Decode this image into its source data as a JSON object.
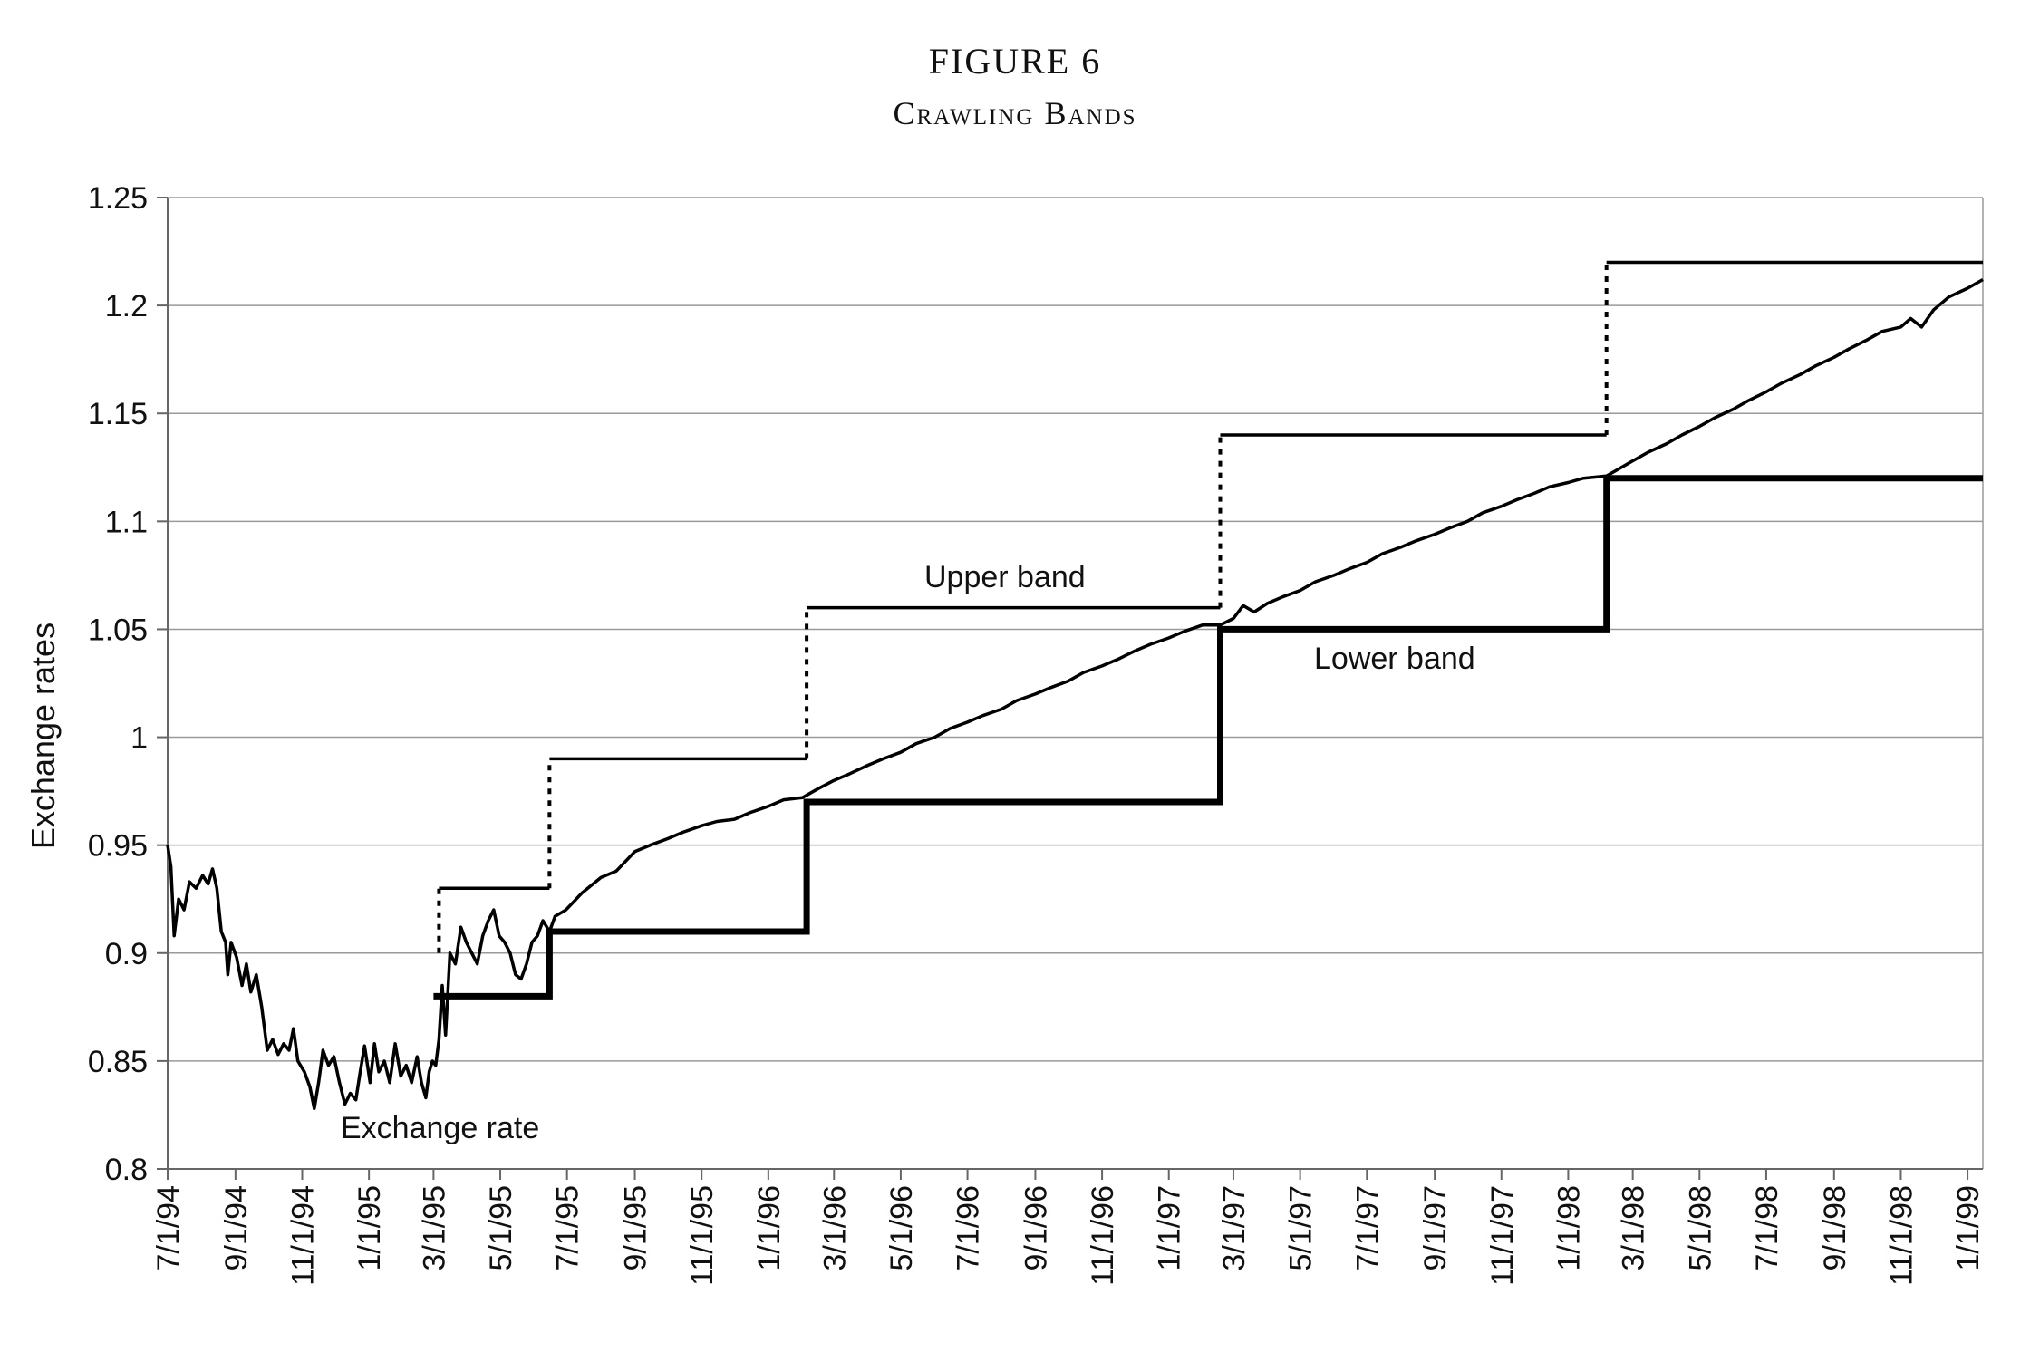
{
  "figure": {
    "number": "FIGURE 6",
    "title": "Crawling Bands"
  },
  "chart_data": {
    "type": "line",
    "title": "Crawling Bands",
    "xlabel": "",
    "ylabel": "Exchange rates",
    "ylim": [
      0.8,
      1.25
    ],
    "yticks": [
      "1.25",
      "1.2",
      "1.15",
      "1.1",
      "1.05",
      "1",
      "0.95",
      "0.9",
      "0.85",
      "0.8"
    ],
    "xticks": [
      "7/1/94",
      "9/1/94",
      "11/1/94",
      "1/1/95",
      "3/1/95",
      "5/1/95",
      "7/1/95",
      "9/1/95",
      "11/1/95",
      "1/1/96",
      "3/1/96",
      "5/1/96",
      "7/1/96",
      "9/1/96",
      "11/1/96",
      "1/1/97",
      "3/1/97",
      "5/1/97",
      "7/1/97",
      "9/1/97",
      "11/1/97",
      "1/1/98",
      "3/1/98",
      "5/1/98",
      "7/1/98",
      "9/1/98",
      "11/1/98",
      "1/1/99"
    ],
    "xlim": [
      "7/1/94",
      "1/15/99"
    ],
    "grid": "horizontal",
    "legend": "none",
    "annotations": [
      {
        "text": "Upper band",
        "series": "upper"
      },
      {
        "text": "Lower band",
        "series": "lower"
      },
      {
        "text": "Exchange rate",
        "series": "rate"
      }
    ],
    "series": [
      {
        "id": "upper",
        "style": "thin step, dotted at jumps",
        "points": [
          [
            "3/6/95",
            0.9
          ],
          [
            "3/6/95",
            0.93
          ],
          [
            "6/15/95",
            0.93
          ],
          [
            "6/15/95",
            0.99
          ],
          [
            "2/5/96",
            0.99
          ],
          [
            "2/5/96",
            1.06
          ],
          [
            "2/17/97",
            1.06
          ],
          [
            "2/17/97",
            1.14
          ],
          [
            "2/5/98",
            1.14
          ],
          [
            "2/5/98",
            1.22
          ],
          [
            "1/15/99",
            1.22
          ]
        ]
      },
      {
        "id": "lower",
        "style": "thick step",
        "points": [
          [
            "3/1/95",
            0.88
          ],
          [
            "6/15/95",
            0.88
          ],
          [
            "6/15/95",
            0.91
          ],
          [
            "2/5/96",
            0.91
          ],
          [
            "2/5/96",
            0.97
          ],
          [
            "2/17/97",
            0.97
          ],
          [
            "2/17/97",
            1.05
          ],
          [
            "2/5/98",
            1.05
          ],
          [
            "2/5/98",
            1.12
          ],
          [
            "1/15/99",
            1.12
          ]
        ]
      },
      {
        "id": "rate",
        "style": "medium line",
        "points": [
          [
            "7/1/94",
            0.95
          ],
          [
            "7/4/94",
            0.94
          ],
          [
            "7/7/94",
            0.908
          ],
          [
            "7/11/94",
            0.925
          ],
          [
            "7/16/94",
            0.92
          ],
          [
            "7/21/94",
            0.933
          ],
          [
            "7/27/94",
            0.93
          ],
          [
            "8/2/94",
            0.936
          ],
          [
            "8/7/94",
            0.932
          ],
          [
            "8/11/94",
            0.939
          ],
          [
            "8/15/94",
            0.93
          ],
          [
            "8/19/94",
            0.91
          ],
          [
            "8/23/94",
            0.905
          ],
          [
            "8/25/94",
            0.89
          ],
          [
            "8/28/94",
            0.905
          ],
          [
            "9/2/94",
            0.898
          ],
          [
            "9/7/94",
            0.885
          ],
          [
            "9/11/94",
            0.895
          ],
          [
            "9/15/94",
            0.882
          ],
          [
            "9/20/94",
            0.89
          ],
          [
            "9/25/94",
            0.875
          ],
          [
            "9/30/94",
            0.855
          ],
          [
            "10/5/94",
            0.86
          ],
          [
            "10/10/94",
            0.853
          ],
          [
            "10/15/94",
            0.858
          ],
          [
            "10/20/94",
            0.855
          ],
          [
            "10/24/94",
            0.865
          ],
          [
            "10/28/94",
            0.85
          ],
          [
            "11/3/94",
            0.845
          ],
          [
            "11/8/94",
            0.838
          ],
          [
            "11/12/94",
            0.828
          ],
          [
            "11/16/94",
            0.84
          ],
          [
            "11/20/94",
            0.855
          ],
          [
            "11/25/94",
            0.848
          ],
          [
            "11/30/94",
            0.852
          ],
          [
            "12/5/94",
            0.84
          ],
          [
            "12/10/94",
            0.83
          ],
          [
            "12/15/94",
            0.835
          ],
          [
            "12/20/94",
            0.832
          ],
          [
            "12/24/94",
            0.845
          ],
          [
            "12/28/94",
            0.857
          ],
          [
            "1/2/95",
            0.84
          ],
          [
            "1/6/95",
            0.858
          ],
          [
            "1/10/95",
            0.845
          ],
          [
            "1/15/95",
            0.85
          ],
          [
            "1/20/95",
            0.84
          ],
          [
            "1/25/95",
            0.858
          ],
          [
            "1/30/95",
            0.843
          ],
          [
            "2/4/95",
            0.848
          ],
          [
            "2/9/95",
            0.84
          ],
          [
            "2/14/95",
            0.852
          ],
          [
            "2/18/95",
            0.84
          ],
          [
            "2/22/95",
            0.833
          ],
          [
            "2/25/95",
            0.845
          ],
          [
            "2/28/95",
            0.85
          ],
          [
            "3/3/95",
            0.848
          ],
          [
            "3/6/95",
            0.86
          ],
          [
            "3/9/95",
            0.885
          ],
          [
            "3/12/95",
            0.862
          ],
          [
            "3/16/95",
            0.9
          ],
          [
            "3/21/95",
            0.895
          ],
          [
            "3/26/95",
            0.912
          ],
          [
            "3/31/95",
            0.905
          ],
          [
            "4/5/95",
            0.9
          ],
          [
            "4/10/95",
            0.895
          ],
          [
            "4/15/95",
            0.908
          ],
          [
            "4/20/95",
            0.915
          ],
          [
            "4/25/95",
            0.92
          ],
          [
            "4/30/95",
            0.908
          ],
          [
            "5/5/95",
            0.905
          ],
          [
            "5/10/95",
            0.9
          ],
          [
            "5/15/95",
            0.89
          ],
          [
            "5/20/95",
            0.888
          ],
          [
            "5/25/95",
            0.895
          ],
          [
            "5/30/95",
            0.905
          ],
          [
            "6/4/95",
            0.908
          ],
          [
            "6/9/95",
            0.915
          ],
          [
            "6/15/95",
            0.91
          ],
          [
            "6/20/95",
            0.917
          ],
          [
            "6/30/95",
            0.92
          ],
          [
            "7/15/95",
            0.928
          ],
          [
            "8/1/95",
            0.935
          ],
          [
            "8/15/95",
            0.938
          ],
          [
            "9/1/95",
            0.947
          ],
          [
            "9/15/95",
            0.95
          ],
          [
            "10/1/95",
            0.953
          ],
          [
            "10/15/95",
            0.956
          ],
          [
            "11/1/95",
            0.959
          ],
          [
            "11/15/95",
            0.961
          ],
          [
            "12/1/95",
            0.962
          ],
          [
            "12/15/95",
            0.965
          ],
          [
            "1/1/96",
            0.968
          ],
          [
            "1/15/96",
            0.971
          ],
          [
            "2/1/96",
            0.972
          ],
          [
            "2/15/96",
            0.976
          ],
          [
            "3/1/96",
            0.98
          ],
          [
            "3/15/96",
            0.983
          ],
          [
            "4/1/96",
            0.987
          ],
          [
            "4/15/96",
            0.99
          ],
          [
            "5/1/96",
            0.993
          ],
          [
            "5/15/96",
            0.997
          ],
          [
            "6/1/96",
            1.0
          ],
          [
            "6/15/96",
            1.004
          ],
          [
            "7/1/96",
            1.007
          ],
          [
            "7/15/96",
            1.01
          ],
          [
            "8/1/96",
            1.013
          ],
          [
            "8/15/96",
            1.017
          ],
          [
            "9/1/96",
            1.02
          ],
          [
            "9/15/96",
            1.023
          ],
          [
            "10/1/96",
            1.026
          ],
          [
            "10/15/96",
            1.03
          ],
          [
            "11/1/96",
            1.033
          ],
          [
            "11/15/96",
            1.036
          ],
          [
            "12/1/96",
            1.04
          ],
          [
            "12/15/96",
            1.043
          ],
          [
            "1/1/97",
            1.046
          ],
          [
            "1/15/97",
            1.049
          ],
          [
            "2/1/97",
            1.052
          ],
          [
            "2/17/97",
            1.052
          ],
          [
            "3/1/97",
            1.055
          ],
          [
            "3/10/97",
            1.061
          ],
          [
            "3/20/97",
            1.058
          ],
          [
            "4/1/97",
            1.062
          ],
          [
            "4/15/97",
            1.065
          ],
          [
            "5/1/97",
            1.068
          ],
          [
            "5/15/97",
            1.072
          ],
          [
            "6/1/97",
            1.075
          ],
          [
            "6/15/97",
            1.078
          ],
          [
            "7/1/97",
            1.081
          ],
          [
            "7/15/97",
            1.085
          ],
          [
            "8/1/97",
            1.088
          ],
          [
            "8/15/97",
            1.091
          ],
          [
            "9/1/97",
            1.094
          ],
          [
            "9/15/97",
            1.097
          ],
          [
            "10/1/97",
            1.1
          ],
          [
            "10/15/97",
            1.104
          ],
          [
            "11/1/97",
            1.107
          ],
          [
            "11/15/97",
            1.11
          ],
          [
            "12/1/97",
            1.113
          ],
          [
            "12/15/97",
            1.116
          ],
          [
            "1/1/98",
            1.118
          ],
          [
            "1/15/98",
            1.12
          ],
          [
            "2/5/98",
            1.121
          ],
          [
            "3/1/98",
            1.128
          ],
          [
            "3/15/98",
            1.132
          ],
          [
            "4/1/98",
            1.136
          ],
          [
            "4/15/98",
            1.14
          ],
          [
            "5/1/98",
            1.144
          ],
          [
            "5/15/98",
            1.148
          ],
          [
            "6/1/98",
            1.152
          ],
          [
            "6/15/98",
            1.156
          ],
          [
            "7/1/98",
            1.16
          ],
          [
            "7/15/98",
            1.164
          ],
          [
            "8/1/98",
            1.168
          ],
          [
            "8/15/98",
            1.172
          ],
          [
            "9/1/98",
            1.176
          ],
          [
            "9/15/98",
            1.18
          ],
          [
            "10/1/98",
            1.184
          ],
          [
            "10/15/98",
            1.188
          ],
          [
            "11/1/98",
            1.19
          ],
          [
            "11/10/98",
            1.194
          ],
          [
            "11/20/98",
            1.19
          ],
          [
            "12/1/98",
            1.198
          ],
          [
            "12/15/98",
            1.204
          ],
          [
            "1/1/99",
            1.208
          ],
          [
            "1/15/99",
            1.212
          ]
        ]
      }
    ]
  }
}
